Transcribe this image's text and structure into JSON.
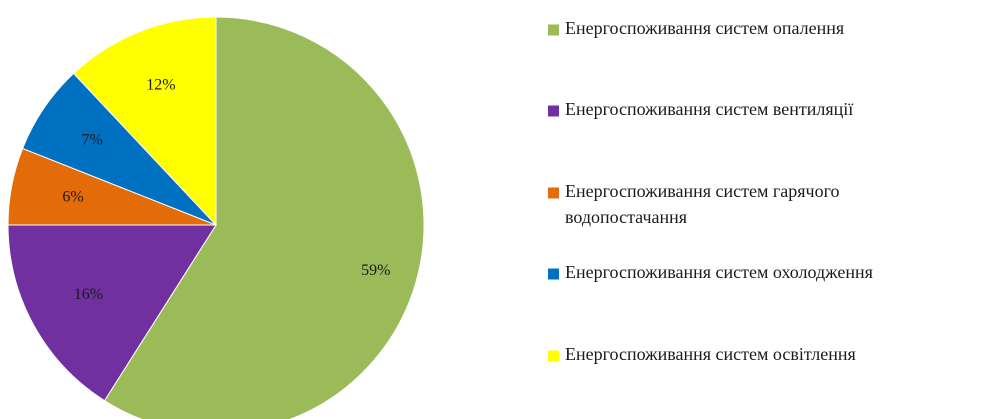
{
  "chart_data": {
    "type": "pie",
    "title": "",
    "slices": [
      {
        "label": "Енергоспоживання систем опалення",
        "legend_lines": [
          "Енергоспоживання систем опалення"
        ],
        "value": 59,
        "display": "59%",
        "color": "#9BBB59"
      },
      {
        "label": "Енергоспоживання систем вентиляції",
        "legend_lines": [
          "Енергоспоживання систем вентиляції"
        ],
        "value": 16,
        "display": "16%",
        "color": "#7030A0"
      },
      {
        "label": "Енергоспоживання систем гарячого водопостачання",
        "legend_lines": [
          "Енергоспоживання систем гарячого",
          "водопостачання"
        ],
        "value": 6,
        "display": "6%",
        "color": "#E36C09"
      },
      {
        "label": "Енергоспоживання систем охолодження",
        "legend_lines": [
          "Енергоспоживання систем охолодження"
        ],
        "value": 7,
        "display": "7%",
        "color": "#0070C0"
      },
      {
        "label": "Енергоспоживання систем освітлення",
        "legend_lines": [
          "Енергоспоживання систем освітлення"
        ],
        "value": 12,
        "display": "12%",
        "color": "#FFFF00"
      }
    ],
    "start_angle": "12 o'clock",
    "direction": "clockwise",
    "legend": "right"
  }
}
